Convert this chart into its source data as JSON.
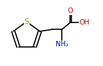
{
  "bg_color": "#ffffff",
  "line_color": "#000000",
  "S_color": "#8B8B00",
  "O_color": "#cc0000",
  "N_color": "#0000bb",
  "label_fontsize": 7.0,
  "line_width": 1.2,
  "fig_width": 1.5,
  "fig_height": 0.97,
  "dpi": 100,
  "xlim": [
    0.0,
    1.0
  ],
  "ylim": [
    0.2,
    0.95
  ]
}
